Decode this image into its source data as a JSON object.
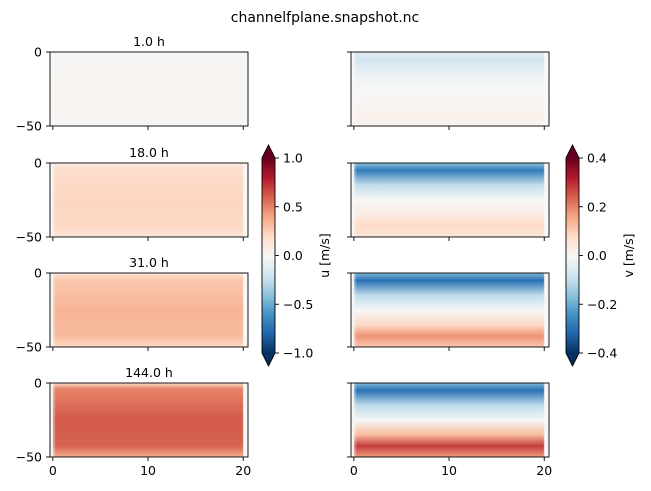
{
  "chart_data": {
    "type": "heatmap",
    "title": "channelfplane.snapshot.nc",
    "panels": [
      {
        "time_label": "1.0 h",
        "u_level": 0.02,
        "v_top": -0.08,
        "v_bottom": 0.02
      },
      {
        "time_label": "18.0 h",
        "u_level": 0.22,
        "v_top": -0.28,
        "v_bottom": 0.08
      },
      {
        "time_label": "31.0 h",
        "u_level": 0.34,
        "v_top": -0.3,
        "v_bottom": 0.18
      },
      {
        "time_label": "144.0 h",
        "u_level": 0.62,
        "v_top": -0.3,
        "v_bottom": 0.28
      }
    ],
    "x_ticks": [
      "0",
      "10",
      "20"
    ],
    "x_tick_values": [
      0,
      10,
      20
    ],
    "xlim": [
      -0.3,
      20.5
    ],
    "y_ticks": [
      "0",
      "−50"
    ],
    "y_tick_values": [
      0,
      -50
    ],
    "ylim": [
      -50,
      0
    ],
    "colorbars": [
      {
        "label": "u [m/s]",
        "ticks": [
          "1.0",
          "0.5",
          "0.0",
          "−0.5",
          "−1.0"
        ],
        "tick_values": [
          1,
          0.5,
          0,
          -0.5,
          -1
        ],
        "range": [
          -1,
          1
        ]
      },
      {
        "label": "v [m/s]",
        "ticks": [
          "0.4",
          "0.2",
          "0.0",
          "−0.2",
          "−0.4"
        ],
        "tick_values": [
          0.4,
          0.2,
          0,
          -0.2,
          -0.4
        ],
        "range": [
          -0.4,
          0.4
        ]
      }
    ],
    "colormap": "RdBu_r"
  }
}
